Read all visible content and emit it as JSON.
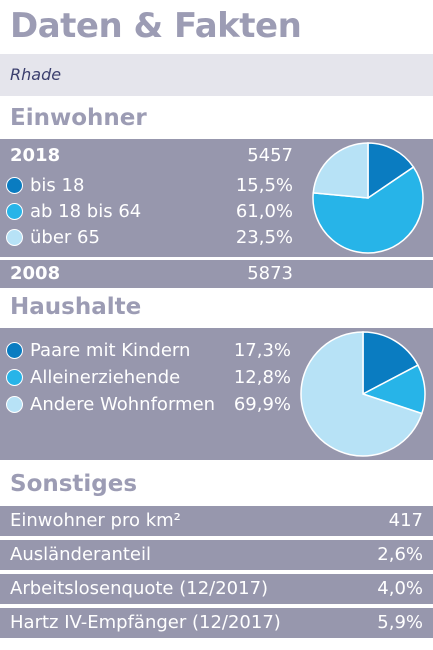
{
  "title": "Daten & Fakten",
  "place": "Rhade",
  "einwohner": {
    "heading": "Einwohner",
    "year_current": "2018",
    "value_current": "5457",
    "items": [
      {
        "label": "bis 18",
        "value": "15,5%",
        "color": "#0a7cc1"
      },
      {
        "label": "ab 18 bis 64",
        "value": "61,0%",
        "color": "#27b4e8"
      },
      {
        "label": "über 65",
        "value": "23,5%",
        "color": "#b7e2f6"
      }
    ],
    "year_past": "2008",
    "value_past": "5873"
  },
  "haushalte": {
    "heading": "Haushalte",
    "items": [
      {
        "label": "Paare mit Kindern",
        "value": "17,3%",
        "color": "#0a7cc1"
      },
      {
        "label": "Alleinerziehende",
        "value": "12,8%",
        "color": "#27b4e8"
      },
      {
        "label": "Andere Wohnformen",
        "value": "69,9%",
        "color": "#b7e2f6"
      }
    ]
  },
  "sonstiges": {
    "heading": "Sonstiges",
    "rows": [
      {
        "label": "Einwohner pro km²",
        "value": "417"
      },
      {
        "label": "Ausländeranteil",
        "value": "2,6%"
      },
      {
        "label": "Arbeitslosenquote (12/2017)",
        "value": "4,0%"
      },
      {
        "label": "Hartz IV-Empfänger (12/2017)",
        "value": "5,9%"
      }
    ]
  },
  "chart_data": [
    {
      "type": "pie",
      "categories": [
        "bis 18",
        "ab 18 bis 64",
        "über 65"
      ],
      "values": [
        15.5,
        61.0,
        23.5
      ],
      "colors": [
        "#0a7cc1",
        "#27b4e8",
        "#b7e2f6"
      ]
    },
    {
      "type": "pie",
      "categories": [
        "Paare mit Kindern",
        "Alleinerziehende",
        "Andere Wohnformen"
      ],
      "values": [
        17.3,
        12.8,
        69.9
      ],
      "colors": [
        "#0a7cc1",
        "#27b4e8",
        "#b7e2f6"
      ]
    }
  ]
}
